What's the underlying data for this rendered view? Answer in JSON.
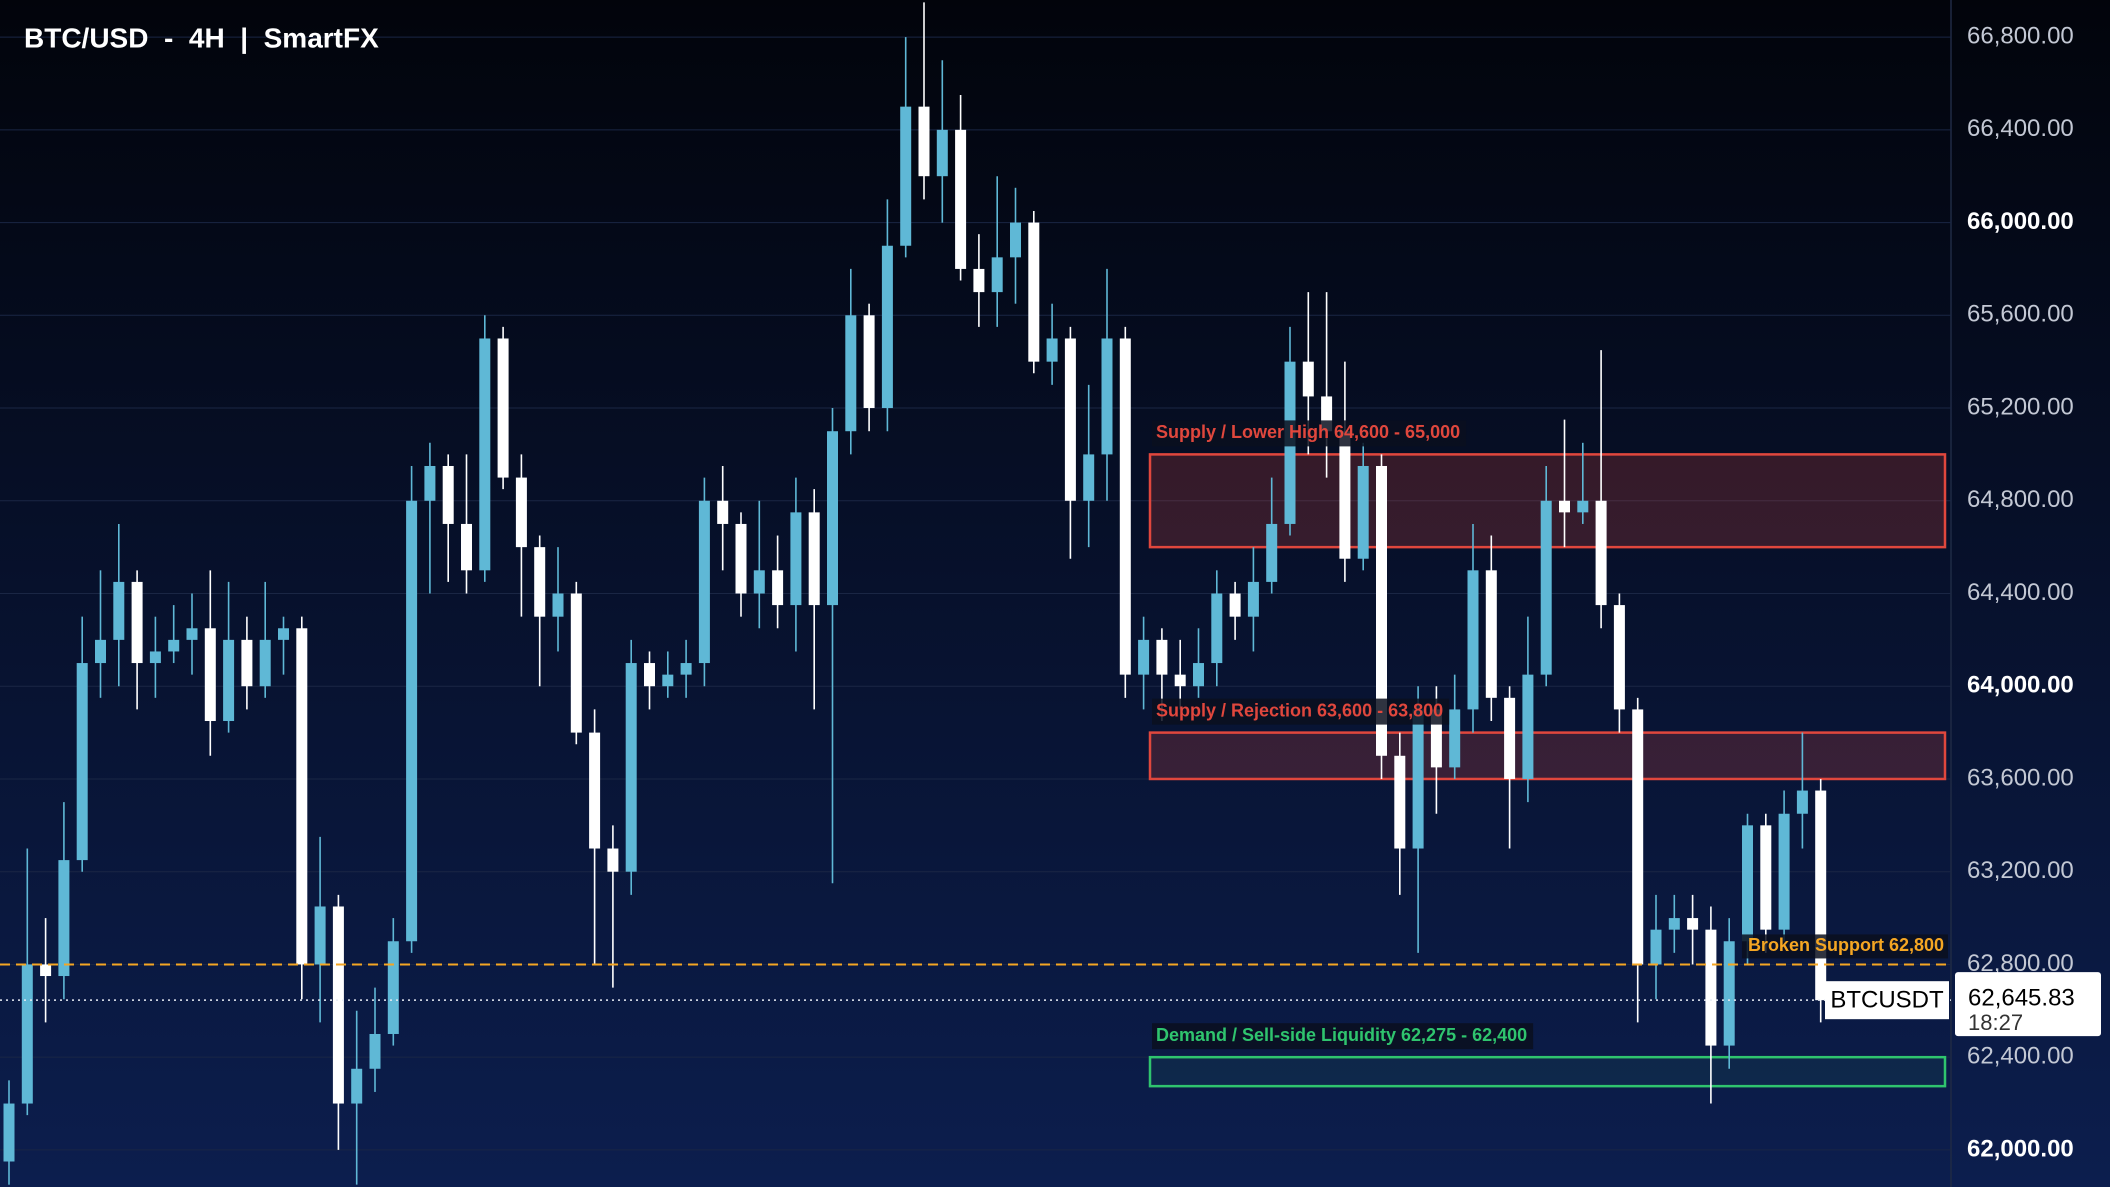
{
  "chart_data": {
    "type": "candlestick",
    "title": "BTC/USD  -  4H  |  SmartFX",
    "up_color": "#5fb8d6",
    "down_color": "#ffffff",
    "open": [
      61950,
      62200,
      62800,
      62750,
      63250,
      64100,
      64200,
      64450,
      64100,
      64150,
      64200,
      64250,
      63850,
      64200,
      64000,
      64200,
      64250,
      62800,
      63050,
      62200,
      62350,
      62500,
      62900,
      64800,
      64950,
      64700,
      64500,
      65500,
      64900,
      64600,
      64300,
      64400,
      63800,
      63300,
      63200,
      64100,
      64000,
      64050,
      64100,
      64800,
      64700,
      64400,
      64500,
      64350,
      64750,
      64350,
      65100,
      65600,
      65200,
      65900,
      66500,
      66200,
      66400,
      65800,
      65700,
      65850,
      66000,
      65400,
      65500,
      64800,
      65000,
      65500,
      64050,
      64200,
      64050,
      64000,
      64100,
      64400,
      64300,
      64450,
      64700,
      65400,
      65250,
      65100,
      64550,
      64950,
      63700,
      63300,
      63900,
      63650,
      63900,
      64500,
      63950,
      63600,
      64050,
      64800,
      64750,
      64800,
      64350,
      63900,
      62800,
      62950,
      63000,
      62950,
      62450,
      62900,
      63400,
      62950,
      63450,
      63550
    ],
    "high": [
      62300,
      63300,
      63000,
      63500,
      64300,
      64500,
      64700,
      64500,
      64300,
      64350,
      64400,
      64500,
      64450,
      64300,
      64450,
      64300,
      64300,
      63350,
      63100,
      62600,
      62700,
      63000,
      64950,
      65050,
      65000,
      65000,
      65600,
      65550,
      65000,
      64650,
      64600,
      64450,
      63900,
      63400,
      64200,
      64150,
      64150,
      64200,
      64900,
      64950,
      64750,
      64800,
      64650,
      64900,
      64850,
      65200,
      65800,
      65650,
      66100,
      66800,
      66950,
      66700,
      66550,
      65950,
      66200,
      66150,
      66050,
      65650,
      65550,
      65300,
      65800,
      65550,
      64300,
      64250,
      64200,
      64250,
      64500,
      64450,
      64600,
      64900,
      65550,
      65700,
      65700,
      65400,
      65050,
      65000,
      63800,
      64000,
      64000,
      64050,
      64700,
      64650,
      64000,
      64300,
      64950,
      65150,
      65050,
      65450,
      64400,
      63950,
      63100,
      63100,
      63100,
      63050,
      63000,
      63450,
      63450,
      63550,
      63800,
      63600
    ],
    "low": [
      61850,
      62150,
      62550,
      62650,
      63200,
      63950,
      64000,
      63900,
      63950,
      64100,
      64050,
      63700,
      63800,
      63900,
      63950,
      64050,
      62650,
      62550,
      62000,
      61850,
      62250,
      62450,
      62850,
      64400,
      64450,
      64400,
      64450,
      64850,
      64300,
      64000,
      64150,
      63750,
      62800,
      62700,
      63100,
      63900,
      63950,
      63950,
      64000,
      64500,
      64300,
      64250,
      64250,
      64150,
      63900,
      63150,
      65000,
      65100,
      65100,
      65850,
      66100,
      66000,
      65750,
      65550,
      65550,
      65650,
      65350,
      65300,
      64550,
      64600,
      64800,
      63950,
      63900,
      63850,
      63900,
      63950,
      64000,
      64200,
      64150,
      64400,
      64650,
      65000,
      64900,
      64450,
      64500,
      63600,
      63100,
      62850,
      63450,
      63600,
      63800,
      63850,
      63300,
      63500,
      64000,
      64600,
      64700,
      64250,
      63800,
      62550,
      62650,
      62850,
      62800,
      62200,
      62350,
      62800,
      62850,
      62900,
      63300,
      62550
    ],
    "close": [
      62200,
      62800,
      62750,
      63250,
      64100,
      64200,
      64450,
      64100,
      64150,
      64200,
      64250,
      63850,
      64200,
      64000,
      64200,
      64250,
      62800,
      63050,
      62200,
      62350,
      62500,
      62900,
      64800,
      64950,
      64700,
      64500,
      65500,
      64900,
      64600,
      64300,
      64400,
      63800,
      63300,
      63200,
      64100,
      64000,
      64050,
      64100,
      64800,
      64700,
      64400,
      64500,
      64350,
      64750,
      64350,
      65100,
      65600,
      65200,
      65900,
      66500,
      66200,
      66400,
      65800,
      65700,
      65850,
      66000,
      65400,
      65500,
      64800,
      65000,
      65500,
      64050,
      64200,
      64050,
      64000,
      64100,
      64400,
      64300,
      64450,
      64700,
      65400,
      65250,
      65100,
      64550,
      64950,
      63700,
      63300,
      63900,
      63650,
      63900,
      64500,
      63950,
      63600,
      64050,
      64800,
      64750,
      64800,
      64350,
      63900,
      62800,
      62950,
      63000,
      62950,
      62450,
      62900,
      63400,
      62950,
      63450,
      63550,
      62645.83
    ],
    "ylim": [
      61840,
      66960
    ],
    "yticks": [
      {
        "value": 62000,
        "label": "62,000.00"
      },
      {
        "value": 62400,
        "label": "62,400.00"
      },
      {
        "value": 62800,
        "label": "62,800.00"
      },
      {
        "value": 63200,
        "label": "63,200.00"
      },
      {
        "value": 63600,
        "label": "63,600.00"
      },
      {
        "value": 64000,
        "label": "64,000.00"
      },
      {
        "value": 64400,
        "label": "64,400.00"
      },
      {
        "value": 64800,
        "label": "64,800.00"
      },
      {
        "value": 65200,
        "label": "65,200.00"
      },
      {
        "value": 65600,
        "label": "65,600.00"
      },
      {
        "value": 66000,
        "label": "66,000.00"
      },
      {
        "value": 66400,
        "label": "66,400.00"
      },
      {
        "value": 66800,
        "label": "66,800.00"
      }
    ],
    "grid": true,
    "zones": [
      {
        "label": "Supply / Lower High  64,600 - 65,000",
        "low": 64600,
        "high": 65000,
        "color": "#e0473d"
      },
      {
        "label": "Supply / Rejection  63,600 - 63,800",
        "low": 63600,
        "high": 63800,
        "color": "#e0473d"
      },
      {
        "label": "Demand / Sell-side Liquidity  62,275 - 62,400",
        "low": 62275,
        "high": 62400,
        "color": "#2fc46e"
      }
    ],
    "broken_support": {
      "label": "Broken Support  62,800",
      "value": 62800,
      "color": "#f5a623"
    },
    "last_price": {
      "symbol": "BTCUSDT",
      "value": 62645.83,
      "label": "62,645.83",
      "countdown": "18:27"
    }
  }
}
